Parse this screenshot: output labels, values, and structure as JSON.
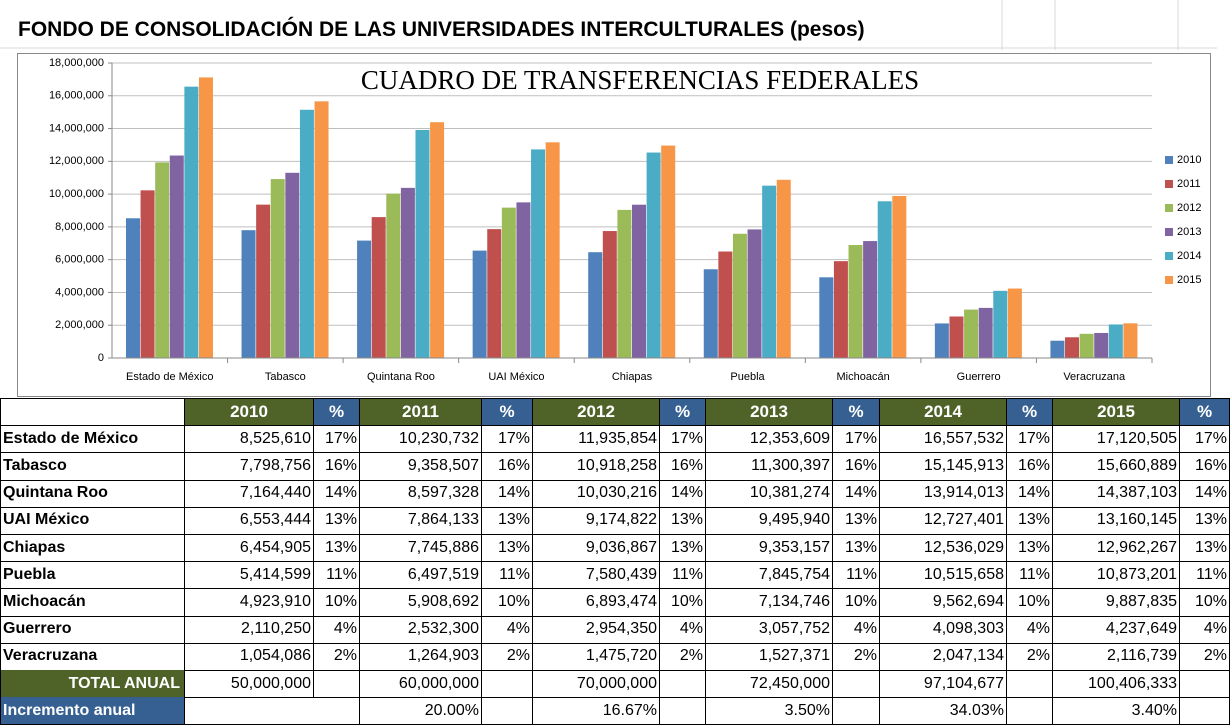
{
  "title": "FONDO DE CONSOLIDACIÓN DE LAS UNIVERSIDADES INTERCULTURALES (pesos)",
  "chart_data": {
    "type": "bar",
    "title": "CUADRO DE TRANSFERENCIAS FEDERALES",
    "categories": [
      "Estado de México",
      "Tabasco",
      "Quintana Roo",
      "UAI México",
      "Chiapas",
      "Puebla",
      "Michoacán",
      "Guerrero",
      "Veracruzana"
    ],
    "series": [
      {
        "name": "2010",
        "color": "#4f81bd",
        "values": [
          8525610,
          7798756,
          7164440,
          6553444,
          6454905,
          5414599,
          4923910,
          2110250,
          1054086
        ]
      },
      {
        "name": "2011",
        "color": "#c0504d",
        "values": [
          10230732,
          9358507,
          8597328,
          7864133,
          7745886,
          6497519,
          5908692,
          2532300,
          1264903
        ]
      },
      {
        "name": "2012",
        "color": "#9bbb59",
        "values": [
          11935854,
          10918258,
          10030216,
          9174822,
          9036867,
          7580439,
          6893474,
          2954350,
          1475720
        ]
      },
      {
        "name": "2013",
        "color": "#8064a2",
        "values": [
          12353609,
          11300397,
          10381274,
          9495940,
          9353157,
          7845754,
          7134746,
          3057752,
          1527371
        ]
      },
      {
        "name": "2014",
        "color": "#4bacc6",
        "values": [
          16557532,
          15145913,
          13914013,
          12727401,
          12536029,
          10515658,
          9562694,
          4098303,
          2047134
        ]
      },
      {
        "name": "2015",
        "color": "#f79646",
        "values": [
          17120505,
          15660889,
          14387103,
          13160145,
          12962267,
          10873201,
          9887835,
          4237649,
          2116739
        ]
      }
    ],
    "ylim": [
      0,
      18000000
    ],
    "yticks": [
      0,
      {
        "value": 2000000,
        "label": "2,000,000"
      },
      {
        "value": 4000000,
        "label": "4,000,000"
      },
      {
        "value": 6000000,
        "label": "6,000,000"
      },
      {
        "value": 8000000,
        "label": "8,000,000"
      },
      {
        "value": 10000000,
        "label": "10,000,000"
      },
      {
        "value": 12000000,
        "label": "12,000,000"
      },
      {
        "value": 14000000,
        "label": "14,000,000"
      },
      {
        "value": 16000000,
        "label": "16,000,000"
      },
      {
        "value": 18000000,
        "label": "18,000,000"
      }
    ],
    "grid": true,
    "legend": "right"
  },
  "table": {
    "header": [
      "2010",
      "%",
      "2011",
      "%",
      "2012",
      "%",
      "2013",
      "%",
      "2014",
      "%",
      "2015",
      "%"
    ],
    "rows": [
      [
        "Estado de México",
        "8,525,610",
        "17%",
        "10,230,732",
        "17%",
        "11,935,854",
        "17%",
        "12,353,609",
        "17%",
        "16,557,532",
        "17%",
        "17,120,505",
        "17%"
      ],
      [
        "Tabasco",
        "7,798,756",
        "16%",
        "9,358,507",
        "16%",
        "10,918,258",
        "16%",
        "11,300,397",
        "16%",
        "15,145,913",
        "16%",
        "15,660,889",
        "16%"
      ],
      [
        "Quintana Roo",
        "7,164,440",
        "14%",
        "8,597,328",
        "14%",
        "10,030,216",
        "14%",
        "10,381,274",
        "14%",
        "13,914,013",
        "14%",
        "14,387,103",
        "14%"
      ],
      [
        "UAI México",
        "6,553,444",
        "13%",
        "7,864,133",
        "13%",
        "9,174,822",
        "13%",
        "9,495,940",
        "13%",
        "12,727,401",
        "13%",
        "13,160,145",
        "13%"
      ],
      [
        "Chiapas",
        "6,454,905",
        "13%",
        "7,745,886",
        "13%",
        "9,036,867",
        "13%",
        "9,353,157",
        "13%",
        "12,536,029",
        "13%",
        "12,962,267",
        "13%"
      ],
      [
        "Puebla",
        "5,414,599",
        "11%",
        "6,497,519",
        "11%",
        "7,580,439",
        "11%",
        "7,845,754",
        "11%",
        "10,515,658",
        "11%",
        "10,873,201",
        "11%"
      ],
      [
        "Michoacán",
        "4,923,910",
        "10%",
        "5,908,692",
        "10%",
        "6,893,474",
        "10%",
        "7,134,746",
        "10%",
        "9,562,694",
        "10%",
        "9,887,835",
        "10%"
      ],
      [
        "Guerrero",
        "2,110,250",
        "4%",
        "2,532,300",
        "4%",
        "2,954,350",
        "4%",
        "3,057,752",
        "4%",
        "4,098,303",
        "4%",
        "4,237,649",
        "4%"
      ],
      [
        "Veracruzana",
        "1,054,086",
        "2%",
        "1,264,903",
        "2%",
        "1,475,720",
        "2%",
        "1,527,371",
        "2%",
        "2,047,134",
        "2%",
        "2,116,739",
        "2%"
      ]
    ],
    "total": {
      "label": "TOTAL ANUAL",
      "values": [
        "50,000,000",
        "60,000,000",
        "70,000,000",
        "72,450,000",
        "97,104,677",
        "100,406,333"
      ]
    },
    "increment": {
      "label": "Incremento anual",
      "values": [
        "20.00%",
        "16.67%",
        "3.50%",
        "34.03%",
        "3.40%"
      ]
    }
  }
}
